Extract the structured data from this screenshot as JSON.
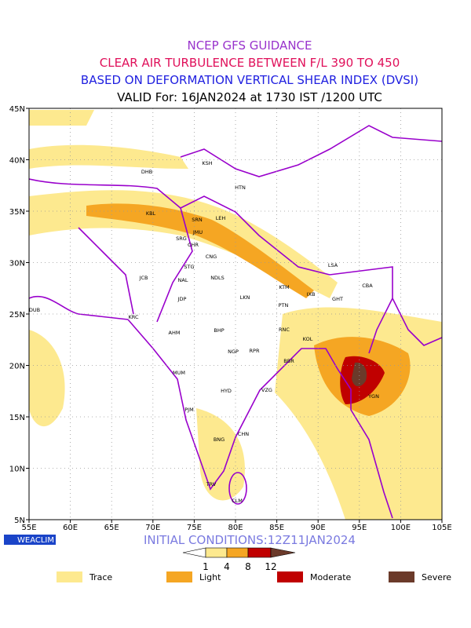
{
  "header": {
    "lines": [
      "NCEP GFS GUIDANCE",
      "CLEAR AIR TURBULENCE BETWEEN F/L 390 TO 450",
      "BASED ON DEFORMATION VERTICAL SHEAR INDEX (DVSI)",
      "VALID For: 16JAN2024 at 1730 IST /1200 UTC"
    ]
  },
  "map": {
    "lat_labels": [
      "45N",
      "40N",
      "35N",
      "30N",
      "25N",
      "20N",
      "15N",
      "10N",
      "5N"
    ],
    "lon_labels": [
      "55E",
      "60E",
      "65E",
      "70E",
      "75E",
      "80E",
      "85E",
      "90E",
      "95E",
      "100E",
      "105E"
    ],
    "cities": [
      "DHB",
      "KSH",
      "HTN",
      "KBL",
      "SRN",
      "LEH",
      "JMU",
      "SRG",
      "CHR",
      "CNG",
      "STG",
      "LSA",
      "JCB",
      "NAL",
      "NDLS",
      "CBA",
      "KTM",
      "IXB",
      "GHT",
      "JDP",
      "LKN",
      "PTN",
      "DUB",
      "KRC",
      "BHP",
      "RNC",
      "AHM",
      "KOL",
      "NGP",
      "RPR",
      "BBR",
      "MUM",
      "HYD",
      "VZG",
      "YGN",
      "PJM",
      "CHN",
      "BNG",
      "TRV",
      "CLM"
    ]
  },
  "footer": {
    "logo": "WEACLIM",
    "initial_conditions": "INITIAL CONDITIONS:12Z11JAN2024",
    "scale_labels": [
      1,
      4,
      8,
      12
    ],
    "legend": [
      "Trace",
      "Light",
      "Moderate",
      "Severe"
    ]
  }
}
